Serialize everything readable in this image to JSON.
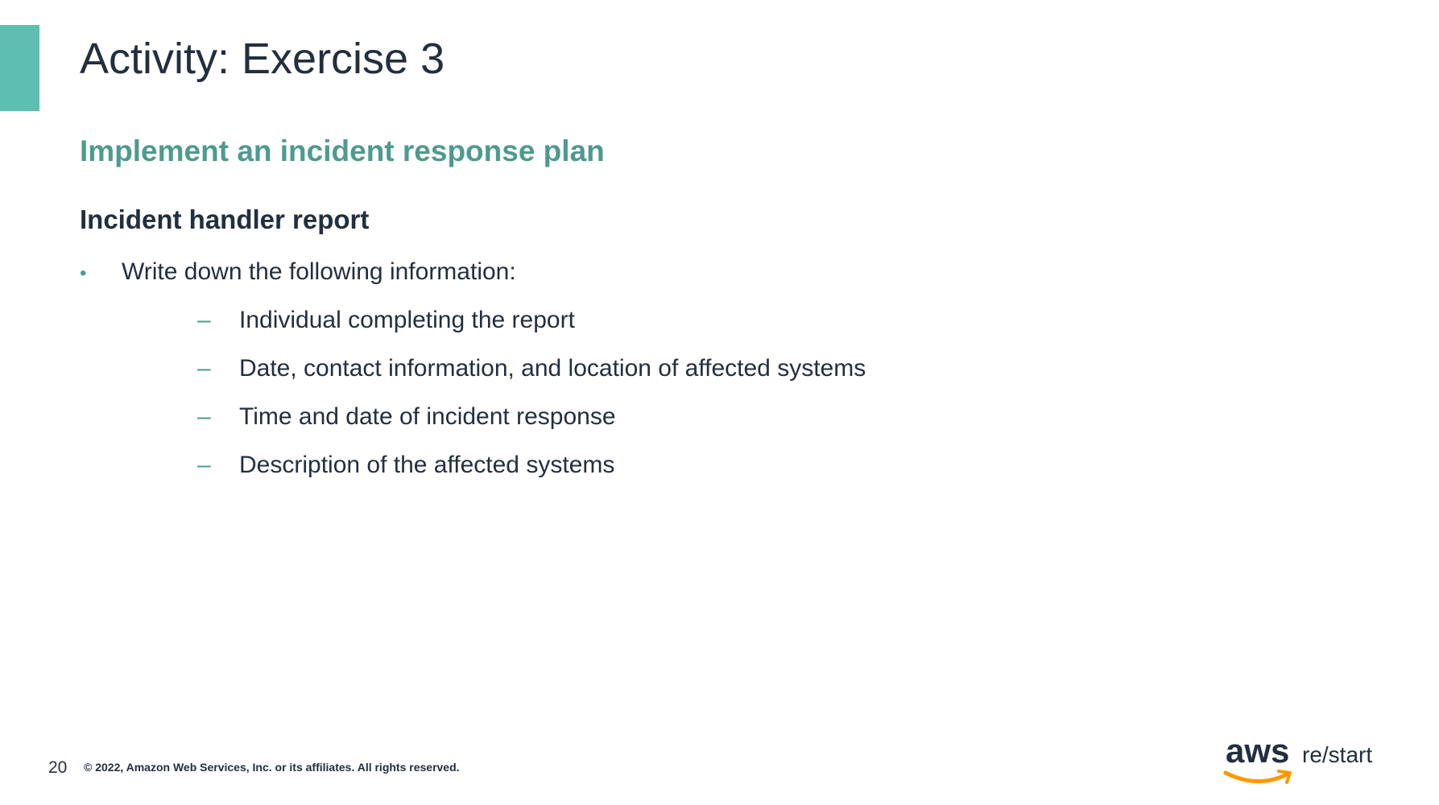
{
  "slide": {
    "title": "Activity: Exercise 3",
    "subtitle": "Implement an incident response plan",
    "section_heading": "Incident handler report",
    "bullet": {
      "marker": "•",
      "text": "Write down the following information:"
    },
    "sub_items": [
      {
        "marker": "–",
        "text": "Individual completing the report"
      },
      {
        "marker": "–",
        "text": "Date, contact information, and location of affected systems"
      },
      {
        "marker": "–",
        "text": "Time and date of incident response"
      },
      {
        "marker": "–",
        "text": "Description of the affected systems"
      }
    ]
  },
  "footer": {
    "page_number": "20",
    "copyright": "© 2022, Amazon Web Services, Inc. or its affiliates. All rights reserved.",
    "logo_aws": "aws",
    "logo_restart": "re/start"
  },
  "colors": {
    "accent": "#5cbfb1",
    "subtitle": "#4e9a8f",
    "text": "#232f3e",
    "logo_smile": "#ff9900"
  }
}
